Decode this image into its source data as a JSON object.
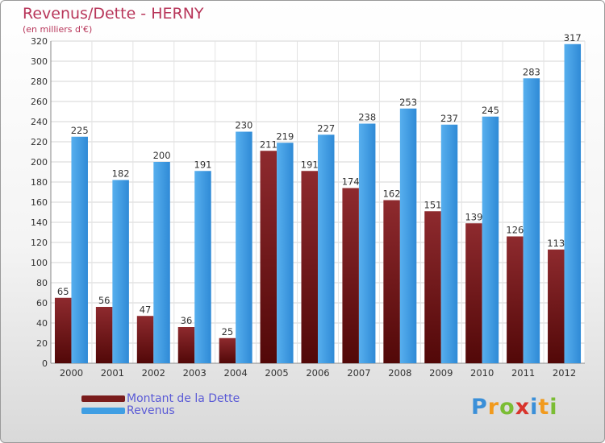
{
  "header": {
    "title": "Revenus/Dette - HERNY",
    "subtitle": "(en milliers d'€)"
  },
  "legend": {
    "items": [
      {
        "label": "Montant de la Dette",
        "color": "#7a1c1c"
      },
      {
        "label": "Revenus",
        "color": "#3f9ee3"
      }
    ]
  },
  "logo": {
    "text": "Proxiti",
    "letters": [
      {
        "ch": "P",
        "color": "#3a8fd8"
      },
      {
        "ch": "r",
        "color": "#f19a1d"
      },
      {
        "ch": "o",
        "color": "#7bbd34"
      },
      {
        "ch": "x",
        "color": "#d8342c"
      },
      {
        "ch": "i",
        "color": "#3a8fd8"
      },
      {
        "ch": "t",
        "color": "#f19a1d"
      },
      {
        "ch": "i",
        "color": "#7bbd34"
      }
    ]
  },
  "chart_data": {
    "type": "bar",
    "title": "Revenus/Dette - HERNY",
    "subtitle": "(en milliers d'€)",
    "categories": [
      "2000",
      "2001",
      "2002",
      "2003",
      "2004",
      "2005",
      "2006",
      "2007",
      "2008",
      "2009",
      "2010",
      "2011",
      "2012"
    ],
    "series": [
      {
        "name": "Montant de la Dette",
        "color": "#7a1c1c",
        "values": [
          65,
          56,
          47,
          36,
          25,
          211,
          191,
          174,
          162,
          151,
          139,
          126,
          113
        ]
      },
      {
        "name": "Revenus",
        "color": "#3f9ee3",
        "values": [
          225,
          182,
          200,
          191,
          230,
          219,
          227,
          238,
          253,
          237,
          245,
          283,
          317
        ]
      }
    ],
    "ylim": [
      0,
      320
    ],
    "yticks": [
      0,
      20,
      40,
      60,
      80,
      100,
      120,
      140,
      160,
      180,
      200,
      220,
      240,
      260,
      280,
      300,
      320
    ],
    "grid": true,
    "legend_position": "bottom-left",
    "data_labels": true
  }
}
